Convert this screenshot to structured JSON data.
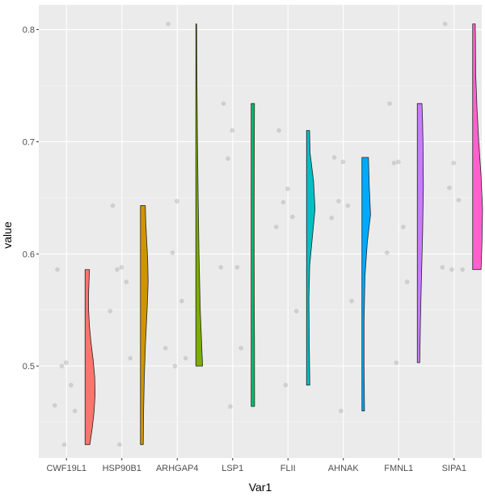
{
  "chart_data": {
    "type": "violin",
    "xlabel": "Var1",
    "ylabel": "value",
    "ylim": [
      0.418,
      0.822
    ],
    "y_ticks": [
      {
        "value": 0.5,
        "label": "0.5"
      },
      {
        "value": 0.6,
        "label": "0.6"
      },
      {
        "value": 0.7,
        "label": "0.7"
      },
      {
        "value": 0.8,
        "label": "0.8"
      }
    ],
    "grid": true,
    "categories": [
      {
        "name": "CWF19L1",
        "color": "#F8766D",
        "points": [
          0.586,
          0.503,
          0.5,
          0.483,
          0.465,
          0.46,
          0.43
        ],
        "violin": [
          [
            0.43,
            0.41
          ],
          [
            0.445,
            0.62
          ],
          [
            0.46,
            0.78
          ],
          [
            0.475,
            0.86
          ],
          [
            0.49,
            0.83
          ],
          [
            0.505,
            0.7
          ],
          [
            0.52,
            0.52
          ],
          [
            0.535,
            0.38
          ],
          [
            0.55,
            0.3
          ],
          [
            0.565,
            0.3
          ],
          [
            0.586,
            0.38
          ]
        ]
      },
      {
        "name": "HSP90B1",
        "color": "#CD9600",
        "points": [
          0.643,
          0.588,
          0.586,
          0.575,
          0.549,
          0.507,
          0.43
        ],
        "violin": [
          [
            0.43,
            0.24
          ],
          [
            0.46,
            0.27
          ],
          [
            0.49,
            0.33
          ],
          [
            0.52,
            0.43
          ],
          [
            0.55,
            0.57
          ],
          [
            0.575,
            0.66
          ],
          [
            0.595,
            0.62
          ],
          [
            0.615,
            0.52
          ],
          [
            0.63,
            0.45
          ],
          [
            0.643,
            0.42
          ]
        ]
      },
      {
        "name": "ARHGAP4",
        "color": "#7CAE00",
        "points": [
          0.805,
          0.647,
          0.601,
          0.558,
          0.516,
          0.507,
          0.5
        ],
        "violin": [
          [
            0.5,
            0.58
          ],
          [
            0.52,
            0.5
          ],
          [
            0.55,
            0.38
          ],
          [
            0.6,
            0.27
          ],
          [
            0.65,
            0.2
          ],
          [
            0.7,
            0.14
          ],
          [
            0.75,
            0.1
          ],
          [
            0.79,
            0.08
          ],
          [
            0.805,
            0.07
          ]
        ]
      },
      {
        "name": "LSP1",
        "color": "#00BE67",
        "points": [
          0.734,
          0.71,
          0.685,
          0.588,
          0.588,
          0.516,
          0.464
        ],
        "violin": [
          [
            0.464,
            0.29
          ],
          [
            0.52,
            0.28
          ],
          [
            0.56,
            0.26
          ],
          [
            0.6,
            0.25
          ],
          [
            0.64,
            0.25
          ],
          [
            0.68,
            0.26
          ],
          [
            0.71,
            0.27
          ],
          [
            0.734,
            0.28
          ]
        ]
      },
      {
        "name": "FLII",
        "color": "#00BFC4",
        "points": [
          0.71,
          0.658,
          0.646,
          0.633,
          0.624,
          0.549,
          0.483
        ],
        "violin": [
          [
            0.483,
            0.28
          ],
          [
            0.52,
            0.23
          ],
          [
            0.56,
            0.2
          ],
          [
            0.59,
            0.27
          ],
          [
            0.615,
            0.5
          ],
          [
            0.64,
            0.73
          ],
          [
            0.665,
            0.6
          ],
          [
            0.69,
            0.3
          ],
          [
            0.71,
            0.26
          ]
        ]
      },
      {
        "name": "AHNAK",
        "color": "#00A9FF",
        "points": [
          0.686,
          0.682,
          0.647,
          0.643,
          0.632,
          0.558,
          0.46
        ],
        "violin": [
          [
            0.46,
            0.22
          ],
          [
            0.5,
            0.18
          ],
          [
            0.54,
            0.18
          ],
          [
            0.58,
            0.26
          ],
          [
            0.61,
            0.46
          ],
          [
            0.635,
            0.74
          ],
          [
            0.66,
            0.63
          ],
          [
            0.686,
            0.56
          ]
        ]
      },
      {
        "name": "FMNL1",
        "color": "#C77CFF",
        "points": [
          0.734,
          0.682,
          0.681,
          0.624,
          0.601,
          0.575,
          0.503
        ],
        "violin": [
          [
            0.503,
            0.21
          ],
          [
            0.54,
            0.27
          ],
          [
            0.58,
            0.36
          ],
          [
            0.62,
            0.46
          ],
          [
            0.66,
            0.52
          ],
          [
            0.7,
            0.49
          ],
          [
            0.72,
            0.45
          ],
          [
            0.734,
            0.4
          ]
        ]
      },
      {
        "name": "SIPA1",
        "color": "#FF61CC",
        "points": [
          0.805,
          0.681,
          0.659,
          0.648,
          0.588,
          0.586,
          0.586
        ],
        "violin": [
          [
            0.586,
            0.72
          ],
          [
            0.61,
            0.8
          ],
          [
            0.64,
            0.85
          ],
          [
            0.67,
            0.72
          ],
          [
            0.7,
            0.52
          ],
          [
            0.73,
            0.37
          ],
          [
            0.76,
            0.26
          ],
          [
            0.79,
            0.24
          ],
          [
            0.805,
            0.22
          ]
        ]
      }
    ]
  }
}
